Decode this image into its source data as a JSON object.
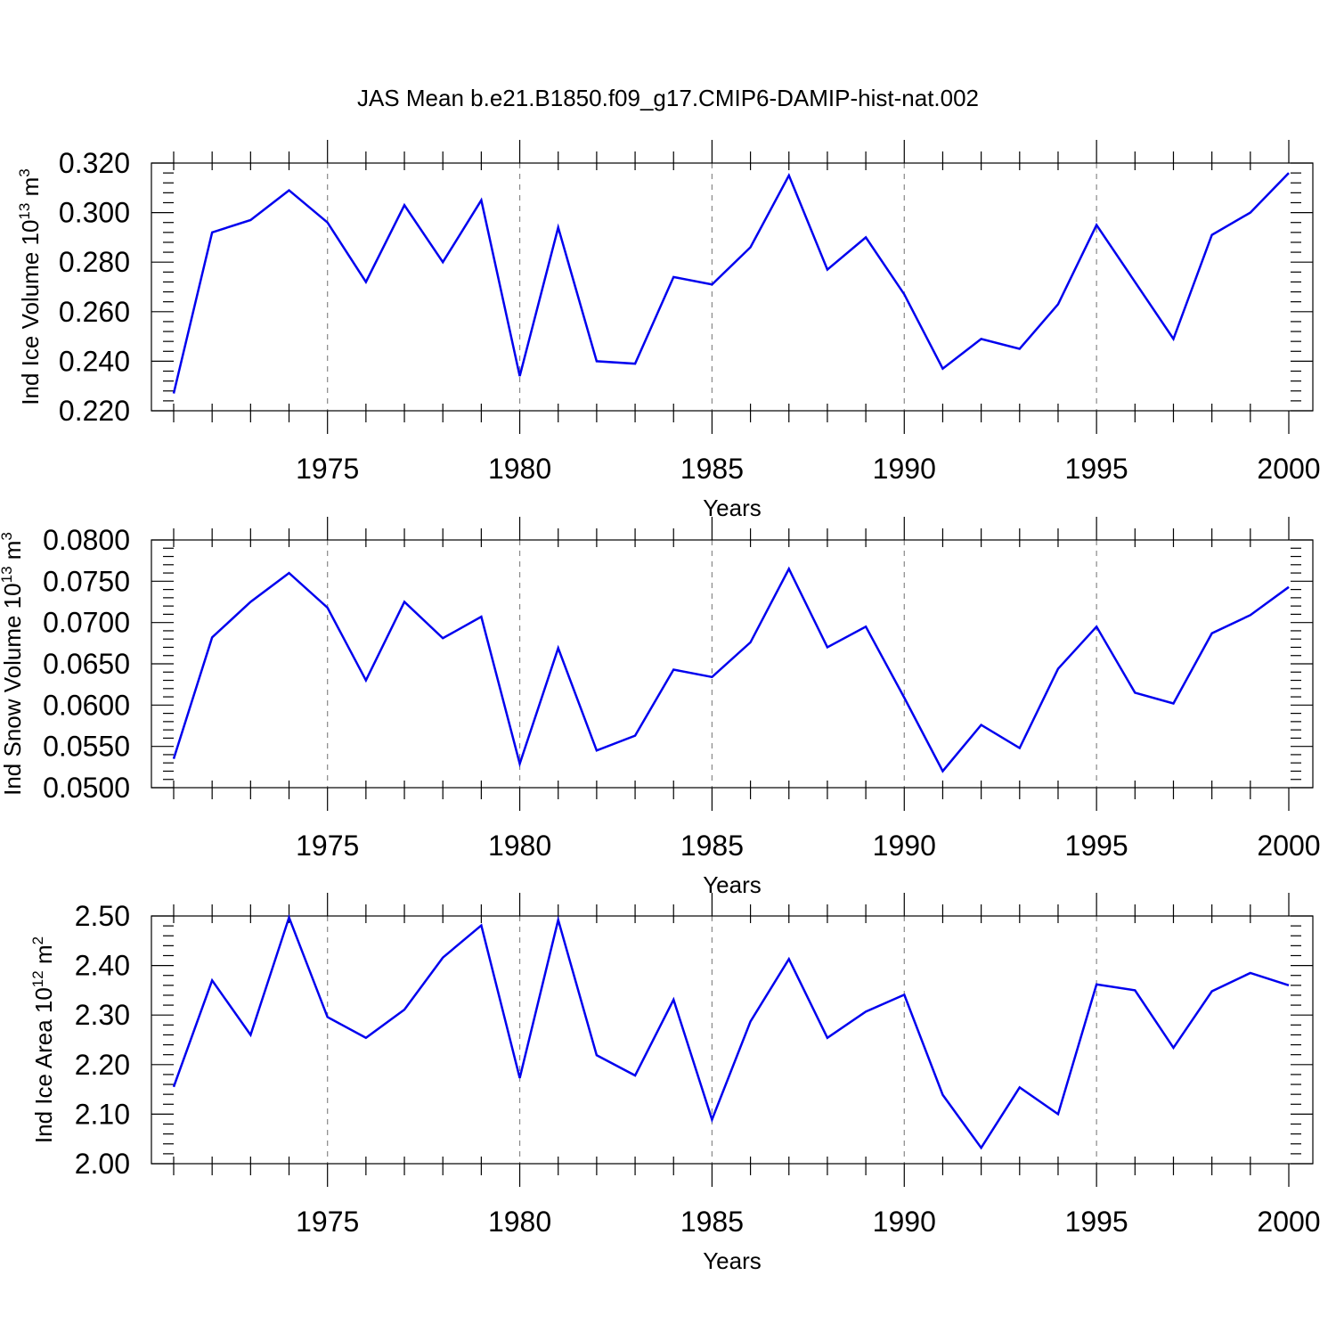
{
  "title": "JAS Mean b.e21.B1850.f09_g17.CMIP6-DAMIP-hist-nat.002",
  "line_color": "#0000ee",
  "chart_data": [
    {
      "type": "line",
      "ylabel": {
        "main": "Ind Ice Volume 10",
        "exponent": "13",
        "unit": " m",
        "unit_exponent": "3"
      },
      "xlabel": "Years",
      "xlim": [
        1971,
        2000
      ],
      "ylim": [
        0.22,
        0.32
      ],
      "yticks": [
        0.22,
        0.24,
        0.26,
        0.28,
        0.3,
        0.32
      ],
      "ytick_labels": [
        "0.220",
        "0.240",
        "0.260",
        "0.280",
        "0.300",
        "0.320"
      ],
      "xticks": [
        1975,
        1980,
        1985,
        1990,
        1995,
        2000
      ],
      "xtick_labels": [
        "1975",
        "1980",
        "1985",
        "1990",
        "1995",
        "2000"
      ],
      "x": [
        1971,
        1972,
        1973,
        1974,
        1975,
        1976,
        1977,
        1978,
        1979,
        1980,
        1981,
        1982,
        1983,
        1984,
        1985,
        1986,
        1987,
        1988,
        1989,
        1990,
        1991,
        1992,
        1993,
        1994,
        1995,
        1996,
        1997,
        1998,
        1999,
        2000
      ],
      "values": [
        0.227,
        0.292,
        0.297,
        0.309,
        0.296,
        0.272,
        0.303,
        0.28,
        0.305,
        0.234,
        0.294,
        0.24,
        0.239,
        0.274,
        0.271,
        0.286,
        0.315,
        0.277,
        0.29,
        0.267,
        0.237,
        0.249,
        0.245,
        0.263,
        0.295,
        0.272,
        0.249,
        0.291,
        0.3,
        0.316
      ]
    },
    {
      "type": "line",
      "ylabel": {
        "main": "Ind Snow Volume 10",
        "exponent": "13",
        "unit": " m",
        "unit_exponent": "3"
      },
      "xlabel": "Years",
      "xlim": [
        1971,
        2000
      ],
      "ylim": [
        0.05,
        0.08
      ],
      "yticks": [
        0.05,
        0.055,
        0.06,
        0.065,
        0.07,
        0.075,
        0.08
      ],
      "ytick_labels": [
        "0.0500",
        "0.0550",
        "0.0600",
        "0.0650",
        "0.0700",
        "0.0750",
        "0.0800"
      ],
      "xticks": [
        1975,
        1980,
        1985,
        1990,
        1995,
        2000
      ],
      "xtick_labels": [
        "1975",
        "1980",
        "1985",
        "1990",
        "1995",
        "2000"
      ],
      "x": [
        1971,
        1972,
        1973,
        1974,
        1975,
        1976,
        1977,
        1978,
        1979,
        1980,
        1981,
        1982,
        1983,
        1984,
        1985,
        1986,
        1987,
        1988,
        1989,
        1990,
        1991,
        1992,
        1993,
        1994,
        1995,
        1996,
        1997,
        1998,
        1999,
        2000
      ],
      "values": [
        0.0535,
        0.0682,
        0.0725,
        0.076,
        0.0718,
        0.063,
        0.0725,
        0.0681,
        0.0707,
        0.0529,
        0.0669,
        0.0545,
        0.0563,
        0.0643,
        0.0634,
        0.0676,
        0.0765,
        0.067,
        0.0695,
        0.0609,
        0.052,
        0.0576,
        0.0548,
        0.0644,
        0.0695,
        0.0615,
        0.0602,
        0.0687,
        0.0709,
        0.0743
      ]
    },
    {
      "type": "line",
      "ylabel": {
        "main": "Ind Ice Area 10",
        "exponent": "12",
        "unit": " m",
        "unit_exponent": "2"
      },
      "xlabel": "Years",
      "xlim": [
        1971,
        2000
      ],
      "ylim": [
        2.0,
        2.5
      ],
      "yticks": [
        2.0,
        2.1,
        2.2,
        2.3,
        2.4,
        2.5
      ],
      "ytick_labels": [
        "2.00",
        "2.10",
        "2.20",
        "2.30",
        "2.40",
        "2.50"
      ],
      "xticks": [
        1975,
        1980,
        1985,
        1990,
        1995,
        2000
      ],
      "xtick_labels": [
        "1975",
        "1980",
        "1985",
        "1990",
        "1995",
        "2000"
      ],
      "x": [
        1971,
        1972,
        1973,
        1974,
        1975,
        1976,
        1977,
        1978,
        1979,
        1980,
        1981,
        1982,
        1983,
        1984,
        1985,
        1986,
        1987,
        1988,
        1989,
        1990,
        1991,
        1992,
        1993,
        1994,
        1995,
        1996,
        1997,
        1998,
        1999,
        2000
      ],
      "values": [
        2.155,
        2.37,
        2.26,
        2.497,
        2.296,
        2.254,
        2.311,
        2.416,
        2.481,
        2.173,
        2.492,
        2.219,
        2.178,
        2.331,
        2.089,
        2.287,
        2.413,
        2.254,
        2.307,
        2.341,
        2.139,
        2.032,
        2.154,
        2.1,
        2.362,
        2.35,
        2.234,
        2.348,
        2.385,
        2.36
      ]
    }
  ]
}
